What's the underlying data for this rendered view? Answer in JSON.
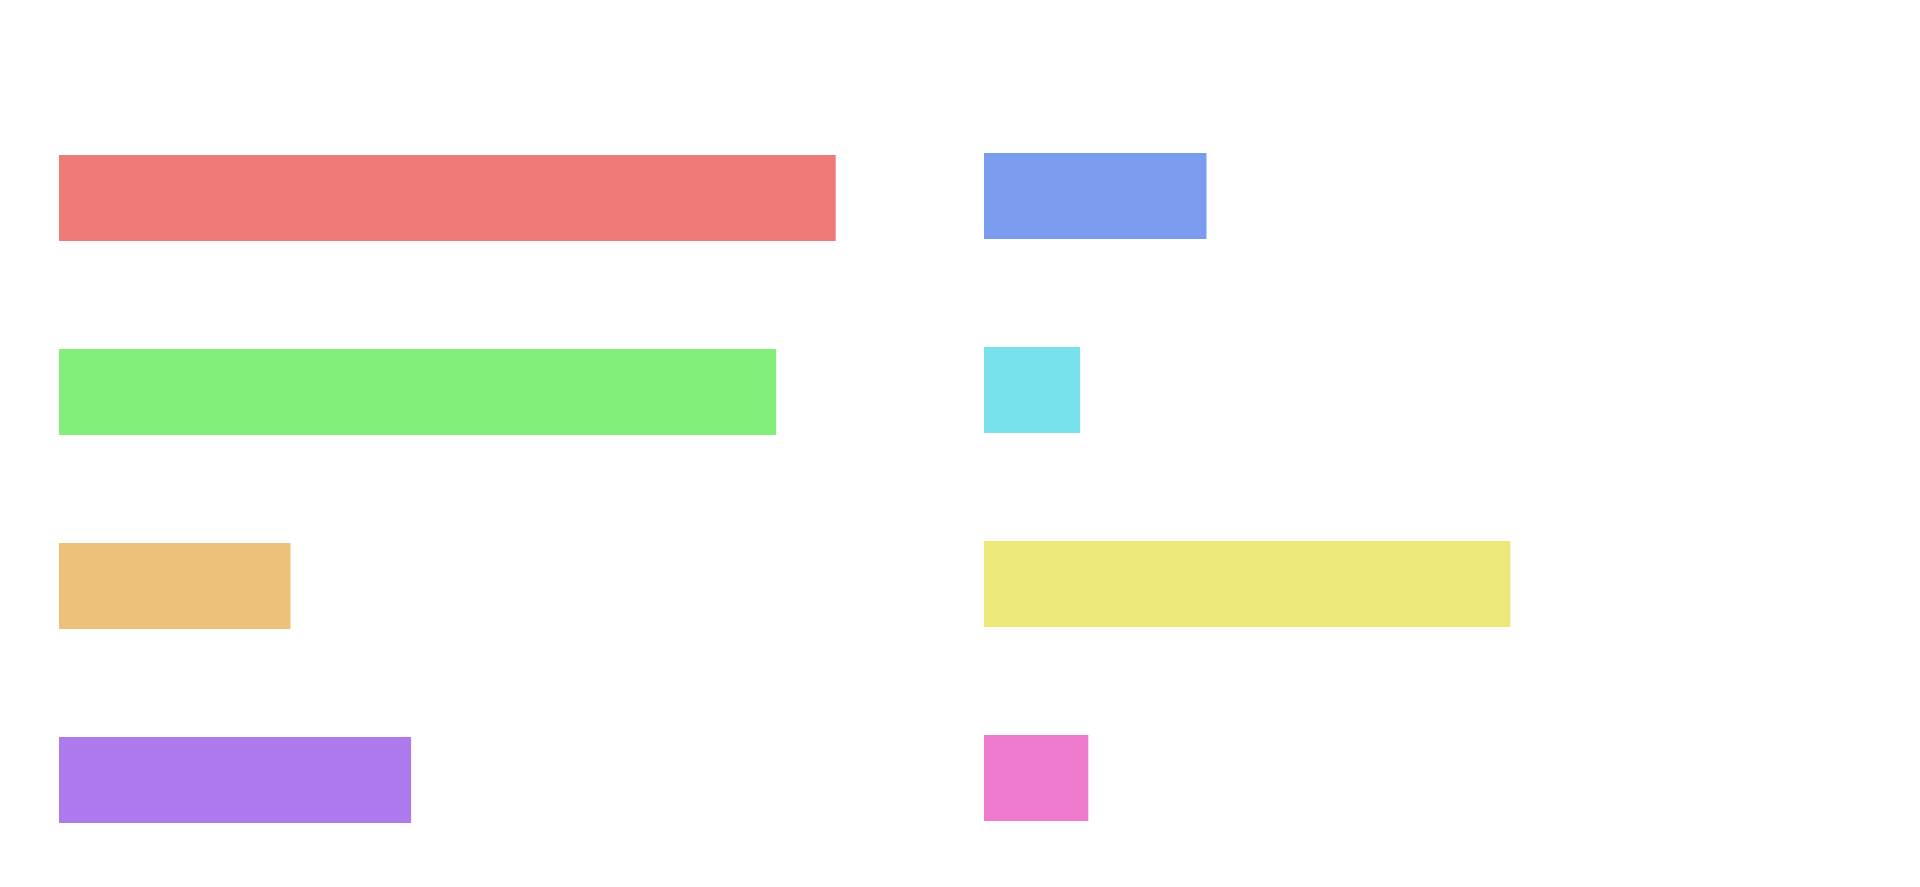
{
  "chart_data": {
    "type": "bar",
    "orientation": "horizontal",
    "title": "",
    "xlabel": "",
    "ylabel": "",
    "grid": false,
    "legend": "none",
    "groups": [
      {
        "name": "",
        "bars": [
          {
            "value": 0.953,
            "color": "#ef7a7a"
          },
          {
            "value": 0.88,
            "color": "#82ee7a"
          },
          {
            "value": 0.284,
            "color": "#ecc27a"
          },
          {
            "value": 0.432,
            "color": "#ad7aee"
          }
        ]
      },
      {
        "name": "",
        "bars": [
          {
            "value": 0.273,
            "color": "#7a9cee"
          },
          {
            "value": 0.118,
            "color": "#7ae1ee"
          },
          {
            "value": 0.646,
            "color": "#ece87a"
          },
          {
            "value": 0.128,
            "color": "#ee7acd"
          }
        ]
      }
    ]
  }
}
